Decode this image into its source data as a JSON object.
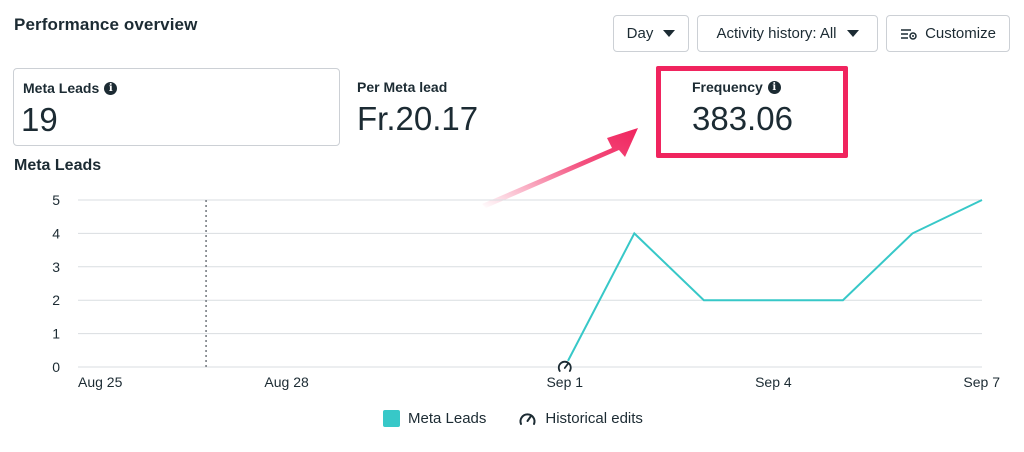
{
  "header": {
    "title": "Performance overview",
    "day_label": "Day",
    "activity_label": "Activity history: All",
    "customize_label": "Customize"
  },
  "metrics": [
    {
      "label": "Meta Leads",
      "value": "19",
      "has_info": true
    },
    {
      "label": "Per Meta lead",
      "value": "Fr.20.17",
      "has_info": false
    },
    {
      "label": "Frequency",
      "value": "383.06",
      "has_info": true
    }
  ],
  "icons": {
    "info": "info-icon",
    "caret": "caret-down-icon",
    "customize": "sliders-icon",
    "historical": "gauge-icon"
  },
  "colors": {
    "series": "#37c8c8",
    "highlight": "#f0245e",
    "grid": "#d9dde1"
  },
  "chart_data": {
    "type": "line",
    "title": "Meta Leads",
    "x_ticks": [
      "Aug 25",
      "Aug 28",
      "Sep 1",
      "Sep 4",
      "Sep 7"
    ],
    "y_ticks": [
      "0",
      "1",
      "2",
      "3",
      "4",
      "5"
    ],
    "ylim": [
      0,
      5
    ],
    "grid": true,
    "series": [
      {
        "name": "Meta Leads",
        "x": [
          "Sep 1",
          "Sep 2",
          "Sep 3",
          "Sep 4",
          "Sep 5",
          "Sep 6",
          "Sep 7"
        ],
        "values": [
          0,
          4,
          2,
          2,
          2,
          4,
          5
        ]
      }
    ],
    "marker_date": "Aug 27",
    "historical_edit_date": "Sep 1"
  },
  "legend": {
    "series_label": "Meta Leads",
    "historical_label": "Historical edits"
  }
}
